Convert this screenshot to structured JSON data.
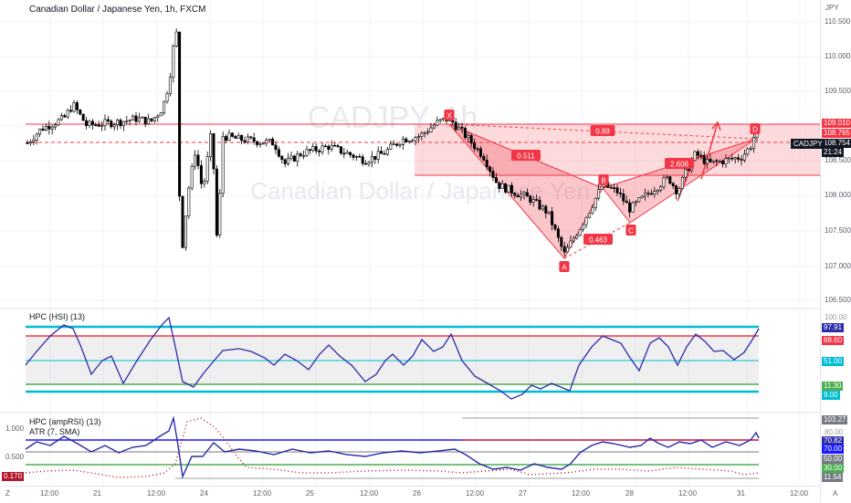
{
  "main_legend": {
    "title": "Canadian Dollar / Japanese Yen, 1h, FXCM"
  },
  "watermark": {
    "symbol": "CADJPY, 1h",
    "name": "Canadian Dollar / Japanese Yen"
  },
  "currency": "JPY",
  "price_scale": {
    "ticks": [
      "110.500",
      "110.000",
      "109.500",
      "109.000",
      "108.500",
      "108.000",
      "107.500",
      "107.000",
      "106.500"
    ],
    "box_upper": "109.010",
    "box_mid": "108.765",
    "last_price": "108.754",
    "countdown": "21:24",
    "symbol_tag": "CADJPY"
  },
  "pattern": {
    "points": [
      "X",
      "A",
      "B",
      "C",
      "D"
    ],
    "ratios": {
      "xb": "0.511",
      "ac": "0.463",
      "bd": "2.606",
      "xd": "0.89"
    }
  },
  "hsi": {
    "legend": "HPC (HSI) (13)",
    "scale_labels": [
      "97.91",
      "88.60",
      "51.00",
      "11.30",
      "9.00"
    ],
    "top_label": "100.00"
  },
  "amprsi": {
    "legend": "HPC (ampRSI) (13)",
    "legend2": "ATR (7, SMA)",
    "left_ticks": [
      "1.000",
      "0.500"
    ],
    "left_box": "0.170",
    "scale_labels": [
      "103.27",
      "80.00",
      "70.82",
      "70.00",
      "50.00",
      "30.00",
      "11.54"
    ]
  },
  "time_axis": {
    "labels": [
      "12:00",
      "21",
      "12:00",
      "24",
      "12:00",
      "25",
      "12:00",
      "26",
      "12:00",
      "27",
      "12:00",
      "28",
      "12:00",
      "31",
      "12:00"
    ],
    "corner_left": "Z",
    "corner_right": "A"
  },
  "colors": {
    "bull_candle": "#ffffff",
    "bear_candle": "#000000",
    "zone_fill": "#f23645",
    "pattern_fill": "#f23645",
    "hsi_line": "#2b2ba8",
    "cyan_level": "#00bcd4",
    "red_level": "#f23645",
    "green_level": "#4caf50"
  }
}
